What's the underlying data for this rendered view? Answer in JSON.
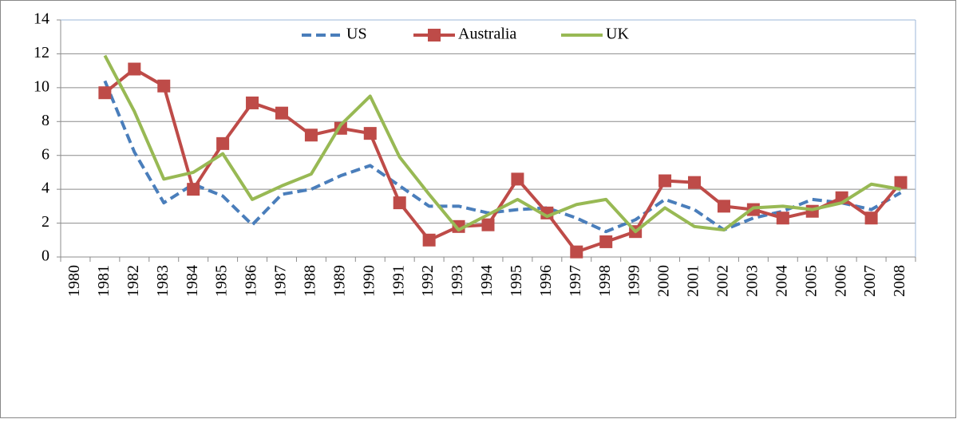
{
  "chart_data": {
    "type": "line",
    "categories": [
      "1980",
      "1981",
      "1982",
      "1983",
      "1984",
      "1985",
      "1986",
      "1987",
      "1988",
      "1989",
      "1990",
      "1991",
      "1992",
      "1993",
      "1994",
      "1995",
      "1996",
      "1997",
      "1998",
      "1999",
      "2000",
      "2001",
      "2002",
      "2003",
      "2004",
      "2005",
      "2006",
      "2007",
      "2008"
    ],
    "series": [
      {
        "name": "US",
        "color": "#4a7ebb",
        "dashed": true,
        "values": [
          null,
          10.4,
          6.2,
          3.2,
          4.3,
          3.6,
          1.9,
          3.7,
          4.0,
          4.8,
          5.4,
          4.2,
          3.0,
          3.0,
          2.6,
          2.8,
          2.9,
          2.3,
          1.5,
          2.2,
          3.4,
          2.8,
          1.6,
          2.3,
          2.7,
          3.4,
          3.2,
          2.8,
          3.8
        ]
      },
      {
        "name": "Australia",
        "color": "#be4b48",
        "marker": "square",
        "values": [
          null,
          9.7,
          11.1,
          10.1,
          4.0,
          6.7,
          9.1,
          8.5,
          7.2,
          7.6,
          7.3,
          3.2,
          1.0,
          1.8,
          1.9,
          4.6,
          2.6,
          0.3,
          0.9,
          1.5,
          4.5,
          4.4,
          3.0,
          2.8,
          2.3,
          2.7,
          3.5,
          2.3,
          4.4
        ]
      },
      {
        "name": "UK",
        "color": "#98b954",
        "values": [
          null,
          11.9,
          8.6,
          4.6,
          5.0,
          6.1,
          3.4,
          4.2,
          4.9,
          7.8,
          9.5,
          5.9,
          3.7,
          1.6,
          2.5,
          3.4,
          2.4,
          3.1,
          3.4,
          1.5,
          2.9,
          1.8,
          1.6,
          2.9,
          3.0,
          2.8,
          3.2,
          4.3,
          4.0
        ]
      }
    ],
    "ylim": [
      0,
      14
    ],
    "yticks": [
      0,
      2,
      4,
      6,
      8,
      10,
      12,
      14
    ],
    "grid": true,
    "legend": "top"
  }
}
